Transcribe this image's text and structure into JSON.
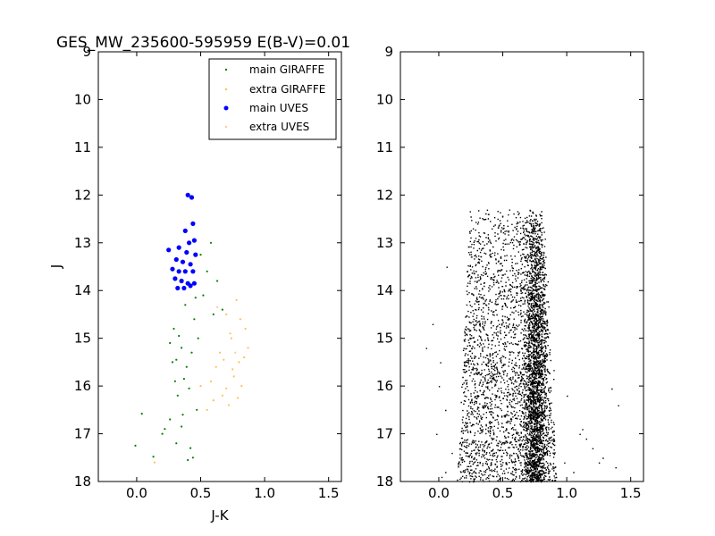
{
  "title": "GES_MW_235600-595959 E(B-V)=0.01",
  "colors": {
    "main_giraffe": "#008000",
    "extra_giraffe": "#ffc04d",
    "main_uves": "#0000ff",
    "extra_uves": "#ffc8a0",
    "stars": "#000000"
  },
  "chart_data": [
    {
      "type": "scatter",
      "xlabel": "J-K",
      "ylabel": "J",
      "xlim": [
        -0.3,
        1.6
      ],
      "ylim": [
        18,
        9
      ],
      "y_inverted": true,
      "xticks": [
        "0.0",
        "0.5",
        "1.0",
        "1.5"
      ],
      "yticks": [
        "9",
        "10",
        "11",
        "12",
        "13",
        "14",
        "15",
        "16",
        "17",
        "18"
      ],
      "legend_position": "top-right",
      "series": [
        {
          "name": "main GIRAFFE",
          "marker": "dot",
          "points": [
            [
              -0.01,
              17.25
            ],
            [
              0.04,
              16.58
            ],
            [
              0.13,
              17.48
            ],
            [
              0.2,
              17.0
            ],
            [
              0.22,
              16.9
            ],
            [
              0.26,
              16.7
            ],
            [
              0.28,
              15.5
            ],
            [
              0.29,
              14.8
            ],
            [
              0.3,
              15.9
            ],
            [
              0.31,
              17.2
            ],
            [
              0.32,
              16.2
            ],
            [
              0.33,
              14.95
            ],
            [
              0.35,
              15.2
            ],
            [
              0.36,
              16.6
            ],
            [
              0.38,
              14.3
            ],
            [
              0.39,
              15.6
            ],
            [
              0.41,
              16.05
            ],
            [
              0.42,
              17.3
            ],
            [
              0.43,
              15.3
            ],
            [
              0.45,
              14.6
            ],
            [
              0.47,
              16.5
            ],
            [
              0.5,
              13.25
            ],
            [
              0.52,
              14.1
            ],
            [
              0.55,
              13.6
            ],
            [
              0.58,
              13.0
            ],
            [
              0.6,
              14.5
            ],
            [
              0.63,
              13.8
            ],
            [
              0.67,
              14.4
            ],
            [
              0.26,
              15.1
            ],
            [
              0.35,
              16.85
            ],
            [
              0.4,
              17.55
            ],
            [
              0.44,
              17.5
            ],
            [
              0.37,
              15.85
            ],
            [
              0.31,
              15.45
            ],
            [
              0.48,
              15.0
            ],
            [
              0.46,
              14.15
            ]
          ]
        },
        {
          "name": "extra GIRAFFE",
          "marker": "dot",
          "points": [
            [
              0.14,
              17.6
            ],
            [
              0.5,
              16.0
            ],
            [
              0.55,
              16.5
            ],
            [
              0.6,
              16.3
            ],
            [
              0.62,
              15.6
            ],
            [
              0.65,
              15.3
            ],
            [
              0.67,
              16.2
            ],
            [
              0.7,
              14.5
            ],
            [
              0.72,
              16.4
            ],
            [
              0.74,
              15.0
            ],
            [
              0.76,
              15.8
            ],
            [
              0.78,
              14.2
            ],
            [
              0.8,
              15.5
            ],
            [
              0.82,
              16.0
            ],
            [
              0.84,
              15.4
            ],
            [
              0.85,
              14.8
            ],
            [
              0.87,
              15.2
            ],
            [
              0.58,
              15.9
            ],
            [
              0.7,
              16.05
            ],
            [
              0.75,
              15.65
            ],
            [
              0.79,
              16.25
            ],
            [
              0.68,
              15.45
            ],
            [
              0.73,
              14.9
            ],
            [
              0.81,
              14.6
            ]
          ]
        },
        {
          "name": "main UVES",
          "marker": "circle",
          "points": [
            [
              0.4,
              12.0
            ],
            [
              0.43,
              12.05
            ],
            [
              0.44,
              12.6
            ],
            [
              0.38,
              12.75
            ],
            [
              0.45,
              12.95
            ],
            [
              0.41,
              13.0
            ],
            [
              0.25,
              13.15
            ],
            [
              0.33,
              13.1
            ],
            [
              0.39,
              13.2
            ],
            [
              0.46,
              13.25
            ],
            [
              0.31,
              13.35
            ],
            [
              0.36,
              13.4
            ],
            [
              0.42,
              13.45
            ],
            [
              0.28,
              13.55
            ],
            [
              0.33,
              13.6
            ],
            [
              0.38,
              13.6
            ],
            [
              0.44,
              13.6
            ],
            [
              0.3,
              13.75
            ],
            [
              0.35,
              13.8
            ],
            [
              0.4,
              13.85
            ],
            [
              0.45,
              13.85
            ],
            [
              0.32,
              13.95
            ],
            [
              0.37,
              13.95
            ],
            [
              0.42,
              13.9
            ]
          ]
        },
        {
          "name": "extra UVES",
          "marker": "dot",
          "points": [
            [
              0.63,
              14.35
            ],
            [
              0.77,
              15.3
            ]
          ]
        }
      ]
    },
    {
      "type": "scatter",
      "xlabel": "",
      "ylabel": "",
      "xlim": [
        -0.3,
        1.6
      ],
      "ylim": [
        18,
        9
      ],
      "y_inverted": true,
      "xticks": [
        "0.0",
        "0.5",
        "1.0",
        "1.5"
      ],
      "yticks": [
        "9",
        "10",
        "11",
        "12",
        "13",
        "14",
        "15",
        "16",
        "17",
        "18"
      ],
      "description_of_distribution": "dense cloud of several thousand stars between J-K 0.2 and 0.9, J 12.3 to 18, with a densest vertical band near J-K 0.75",
      "distribution": {
        "count": 5200,
        "seed": 12345,
        "j_range": [
          12.3,
          18.0
        ],
        "left_edge_at_top": 0.24,
        "left_edge_at_bottom": 0.14,
        "right_edge_at_top": 0.8,
        "right_edge_at_bottom": 0.92,
        "band_center": 0.75,
        "band_weight": 0.45,
        "stragglers": [
          [
            0.06,
            13.5
          ],
          [
            -0.05,
            14.7
          ],
          [
            0.01,
            15.5
          ],
          [
            0.0,
            16.0
          ],
          [
            0.05,
            16.5
          ],
          [
            -0.02,
            17.0
          ],
          [
            0.1,
            17.4
          ],
          [
            0.05,
            17.8
          ],
          [
            0.02,
            17.9
          ],
          [
            1.35,
            16.05
          ],
          [
            1.4,
            16.4
          ],
          [
            1.28,
            17.5
          ],
          [
            1.2,
            17.3
          ],
          [
            1.1,
            17.0
          ],
          [
            1.05,
            17.8
          ],
          [
            0.98,
            17.6
          ],
          [
            1.0,
            16.2
          ],
          [
            1.15,
            17.1
          ],
          [
            1.25,
            17.6
          ],
          [
            1.38,
            17.7
          ],
          [
            -0.1,
            15.2
          ],
          [
            1.12,
            16.9
          ]
        ]
      }
    }
  ]
}
